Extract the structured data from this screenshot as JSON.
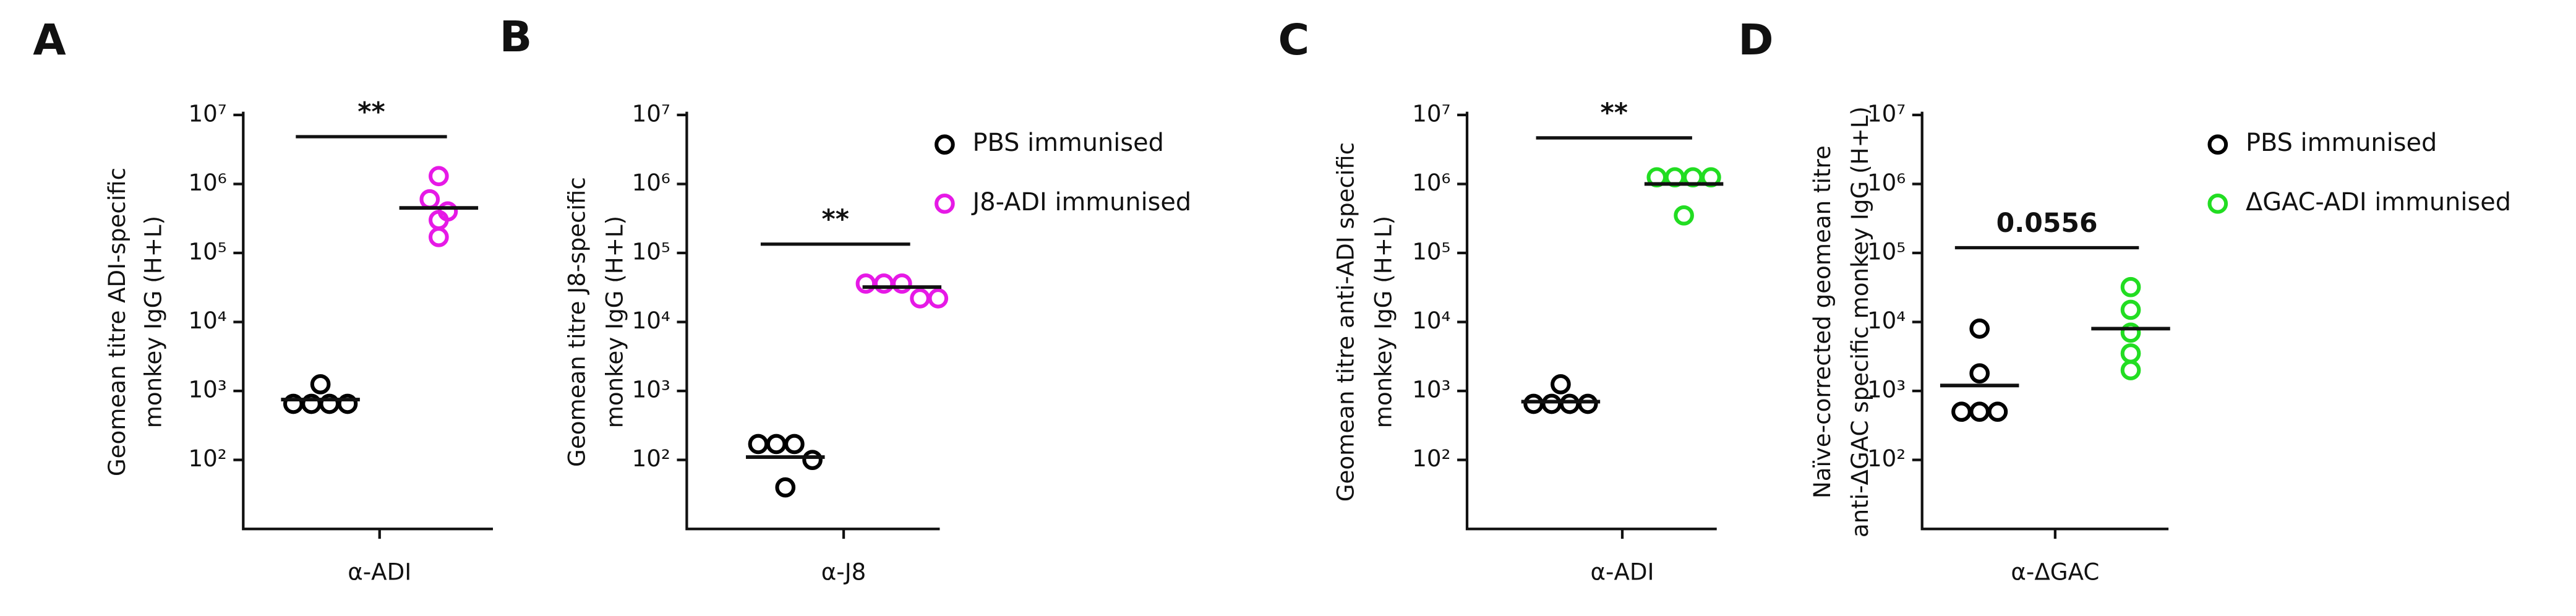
{
  "chart_data": [
    {
      "type": "strip",
      "panel": "A",
      "ylabel": [
        "Geomean titre ADI-specific",
        "monkey IgG (H+L)"
      ],
      "categories": [
        "α-ADI"
      ],
      "log_scale": true,
      "ylim": [
        10,
        10000000
      ],
      "yticks": [
        {
          "value": 100,
          "label": "10²"
        },
        {
          "value": 1000,
          "label": "10³"
        },
        {
          "value": 10000,
          "label": "10⁴"
        },
        {
          "value": 100000,
          "label": "10⁵"
        },
        {
          "value": 1000000,
          "label": "10⁶"
        },
        {
          "value": 10000000,
          "label": "10⁷"
        }
      ],
      "annotation": "**",
      "legend": false,
      "series": [
        {
          "color": "#000000",
          "values": [
            650,
            650,
            1250,
            650,
            650
          ],
          "geomean": 750
        },
        {
          "color": "#e619e6",
          "values": [
            1300000,
            600000,
            400000,
            300000,
            170000
          ],
          "geomean": 450000
        }
      ]
    },
    {
      "type": "strip",
      "panel": "B",
      "ylabel": [
        "Geomean titre J8-specific",
        "monkey IgG (H+L)"
      ],
      "categories": [
        "α-J8"
      ],
      "log_scale": true,
      "ylim": [
        10,
        10000000
      ],
      "yticks": [
        {
          "value": 100,
          "label": "10²"
        },
        {
          "value": 1000,
          "label": "10³"
        },
        {
          "value": 10000,
          "label": "10⁴"
        },
        {
          "value": 100000,
          "label": "10⁵"
        },
        {
          "value": 1000000,
          "label": "10⁶"
        },
        {
          "value": 10000000,
          "label": "10⁷"
        }
      ],
      "annotation": "**",
      "legend": true,
      "series": [
        {
          "name": "PBS immunised",
          "color": "#000000",
          "values": [
            170,
            170,
            100,
            170,
            40
          ],
          "geomean": 110
        },
        {
          "name": "J8-ADI immunised",
          "color": "#e619e6",
          "values": [
            36000,
            36000,
            36000,
            22000,
            22000
          ],
          "geomean": 32000
        }
      ]
    },
    {
      "type": "strip",
      "panel": "C",
      "ylabel": [
        "Geomean titre anti-ADI specific",
        "monkey IgG (H+L)"
      ],
      "categories": [
        "α-ADI"
      ],
      "log_scale": true,
      "ylim": [
        10,
        10000000
      ],
      "yticks": [
        {
          "value": 100,
          "label": "10²"
        },
        {
          "value": 1000,
          "label": "10³"
        },
        {
          "value": 10000,
          "label": "10⁴"
        },
        {
          "value": 100000,
          "label": "10⁵"
        },
        {
          "value": 1000000,
          "label": "10⁶"
        },
        {
          "value": 10000000,
          "label": "10⁷"
        }
      ],
      "annotation": "**",
      "legend": false,
      "series": [
        {
          "color": "#000000",
          "values": [
            650,
            650,
            1250,
            650,
            650
          ],
          "geomean": 700
        },
        {
          "color": "#22dd22",
          "values": [
            1250000,
            1250000,
            1250000,
            1250000,
            350000
          ],
          "geomean": 1000000
        }
      ]
    },
    {
      "type": "strip",
      "panel": "D",
      "ylabel": [
        "Naïve-corrected geomean titre",
        "anti-ΔGAC specific monkey IgG (H+L)"
      ],
      "categories": [
        "α-ΔGAC"
      ],
      "log_scale": true,
      "ylim": [
        10,
        10000000
      ],
      "yticks": [
        {
          "value": 100,
          "label": "10²"
        },
        {
          "value": 1000,
          "label": "10³"
        },
        {
          "value": 10000,
          "label": "10⁴"
        },
        {
          "value": 100000,
          "label": "10⁵"
        },
        {
          "value": 1000000,
          "label": "10⁶"
        },
        {
          "value": 10000000,
          "label": "10⁷"
        }
      ],
      "annotation": "0.0556",
      "legend": true,
      "series": [
        {
          "name": "PBS immunised",
          "color": "#000000",
          "values": [
            8000,
            1800,
            500,
            500,
            500
          ],
          "geomean": 1200
        },
        {
          "name": "ΔGAC-ADI immunised",
          "color": "#22dd22",
          "values": [
            32000,
            15000,
            7000,
            3500,
            2000
          ],
          "geomean": 8000
        }
      ]
    }
  ]
}
